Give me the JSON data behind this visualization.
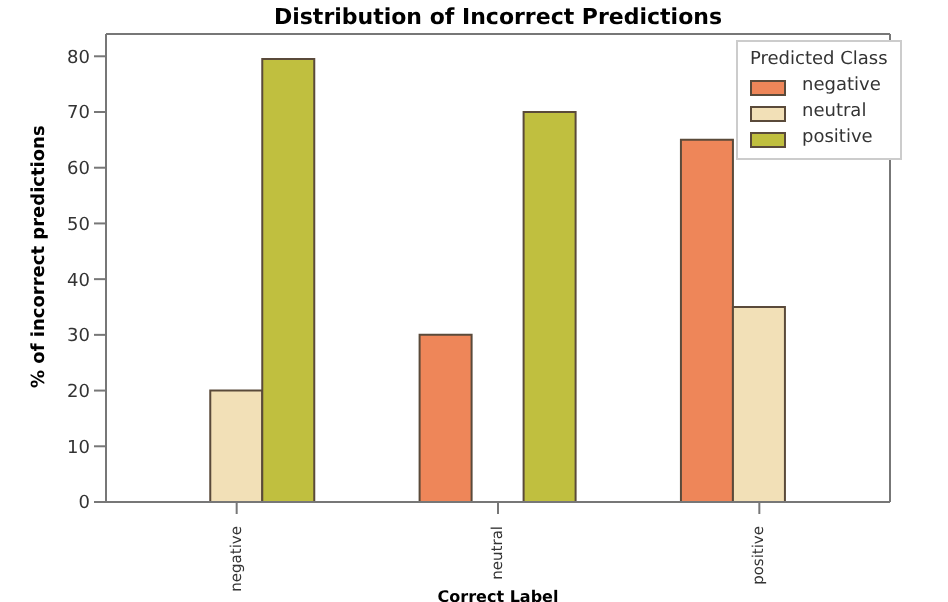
{
  "chart_data": {
    "type": "bar",
    "title": "Distribution of Incorrect Predictions",
    "xlabel": "Correct Label",
    "ylabel": "% of incorrect predictions",
    "legend_title": "Predicted Class",
    "categories": [
      "negative",
      "neutral",
      "positive"
    ],
    "series": [
      {
        "name": "negative",
        "color": "#ee8659",
        "values": [
          0,
          30,
          65
        ]
      },
      {
        "name": "neutral",
        "color": "#f2e0b7",
        "values": [
          20,
          0,
          35
        ]
      },
      {
        "name": "positive",
        "color": "#c0bf3f",
        "values": [
          79.5,
          70,
          0
        ]
      }
    ],
    "ylim": [
      0,
      84
    ],
    "yticks": [
      0,
      10,
      20,
      30,
      40,
      50,
      60,
      70,
      80
    ],
    "grid": false,
    "legend": "top right"
  }
}
